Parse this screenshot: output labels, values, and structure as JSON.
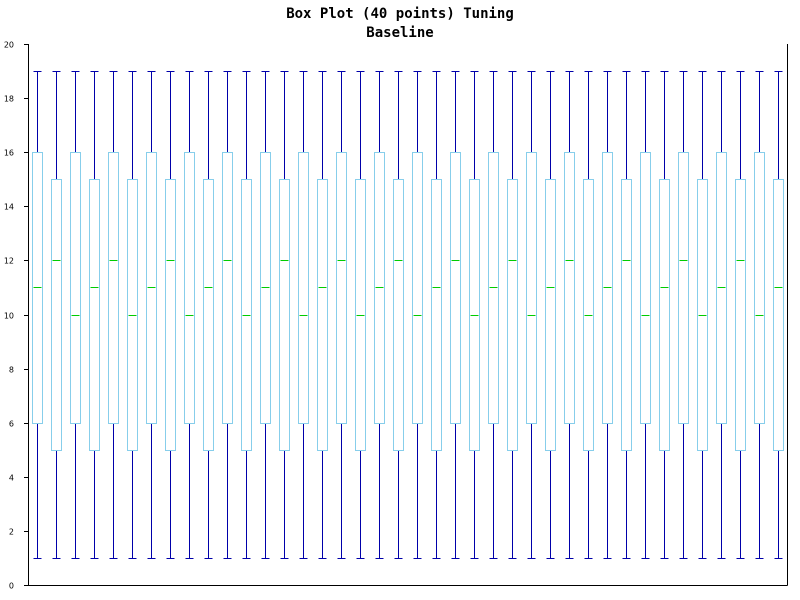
{
  "chart_data": {
    "type": "box",
    "title": "Box Plot (40 points) Tuning",
    "subtitle": "Baseline",
    "xlabel": "",
    "ylabel": "",
    "ylim": [
      0,
      20
    ],
    "y_ticks": [
      "0",
      "2",
      "4",
      "6",
      "8",
      "10",
      "12",
      "14",
      "16",
      "18",
      "20"
    ],
    "grid": false,
    "colors": {
      "whisker": "#0000aa",
      "box": "#87ceeb",
      "median": "#00cc00",
      "axis": "#000000"
    },
    "boxes": [
      {
        "min": 1,
        "q1": 6,
        "median": 11,
        "q3": 16,
        "max": 19
      },
      {
        "min": 1,
        "q1": 5,
        "median": 12,
        "q3": 15,
        "max": 19
      },
      {
        "min": 1,
        "q1": 6,
        "median": 10,
        "q3": 16,
        "max": 19
      },
      {
        "min": 1,
        "q1": 5,
        "median": 11,
        "q3": 15,
        "max": 19
      },
      {
        "min": 1,
        "q1": 6,
        "median": 12,
        "q3": 16,
        "max": 19
      },
      {
        "min": 1,
        "q1": 5,
        "median": 10,
        "q3": 15,
        "max": 19
      },
      {
        "min": 1,
        "q1": 6,
        "median": 11,
        "q3": 16,
        "max": 19
      },
      {
        "min": 1,
        "q1": 5,
        "median": 12,
        "q3": 15,
        "max": 19
      },
      {
        "min": 1,
        "q1": 6,
        "median": 10,
        "q3": 16,
        "max": 19
      },
      {
        "min": 1,
        "q1": 5,
        "median": 11,
        "q3": 15,
        "max": 19
      },
      {
        "min": 1,
        "q1": 6,
        "median": 12,
        "q3": 16,
        "max": 19
      },
      {
        "min": 1,
        "q1": 5,
        "median": 10,
        "q3": 15,
        "max": 19
      },
      {
        "min": 1,
        "q1": 6,
        "median": 11,
        "q3": 16,
        "max": 19
      },
      {
        "min": 1,
        "q1": 5,
        "median": 12,
        "q3": 15,
        "max": 19
      },
      {
        "min": 1,
        "q1": 6,
        "median": 10,
        "q3": 16,
        "max": 19
      },
      {
        "min": 1,
        "q1": 5,
        "median": 11,
        "q3": 15,
        "max": 19
      },
      {
        "min": 1,
        "q1": 6,
        "median": 12,
        "q3": 16,
        "max": 19
      },
      {
        "min": 1,
        "q1": 5,
        "median": 10,
        "q3": 15,
        "max": 19
      },
      {
        "min": 1,
        "q1": 6,
        "median": 11,
        "q3": 16,
        "max": 19
      },
      {
        "min": 1,
        "q1": 5,
        "median": 12,
        "q3": 15,
        "max": 19
      },
      {
        "min": 1,
        "q1": 6,
        "median": 10,
        "q3": 16,
        "max": 19
      },
      {
        "min": 1,
        "q1": 5,
        "median": 11,
        "q3": 15,
        "max": 19
      },
      {
        "min": 1,
        "q1": 6,
        "median": 12,
        "q3": 16,
        "max": 19
      },
      {
        "min": 1,
        "q1": 5,
        "median": 10,
        "q3": 15,
        "max": 19
      },
      {
        "min": 1,
        "q1": 6,
        "median": 11,
        "q3": 16,
        "max": 19
      },
      {
        "min": 1,
        "q1": 5,
        "median": 12,
        "q3": 15,
        "max": 19
      },
      {
        "min": 1,
        "q1": 6,
        "median": 10,
        "q3": 16,
        "max": 19
      },
      {
        "min": 1,
        "q1": 5,
        "median": 11,
        "q3": 15,
        "max": 19
      },
      {
        "min": 1,
        "q1": 6,
        "median": 12,
        "q3": 16,
        "max": 19
      },
      {
        "min": 1,
        "q1": 5,
        "median": 10,
        "q3": 15,
        "max": 19
      },
      {
        "min": 1,
        "q1": 6,
        "median": 11,
        "q3": 16,
        "max": 19
      },
      {
        "min": 1,
        "q1": 5,
        "median": 12,
        "q3": 15,
        "max": 19
      },
      {
        "min": 1,
        "q1": 6,
        "median": 10,
        "q3": 16,
        "max": 19
      },
      {
        "min": 1,
        "q1": 5,
        "median": 11,
        "q3": 15,
        "max": 19
      },
      {
        "min": 1,
        "q1": 6,
        "median": 12,
        "q3": 16,
        "max": 19
      },
      {
        "min": 1,
        "q1": 5,
        "median": 10,
        "q3": 15,
        "max": 19
      },
      {
        "min": 1,
        "q1": 6,
        "median": 11,
        "q3": 16,
        "max": 19
      },
      {
        "min": 1,
        "q1": 5,
        "median": 12,
        "q3": 15,
        "max": 19
      },
      {
        "min": 1,
        "q1": 6,
        "median": 10,
        "q3": 16,
        "max": 19
      },
      {
        "min": 1,
        "q1": 5,
        "median": 11,
        "q3": 15,
        "max": 19
      }
    ]
  }
}
